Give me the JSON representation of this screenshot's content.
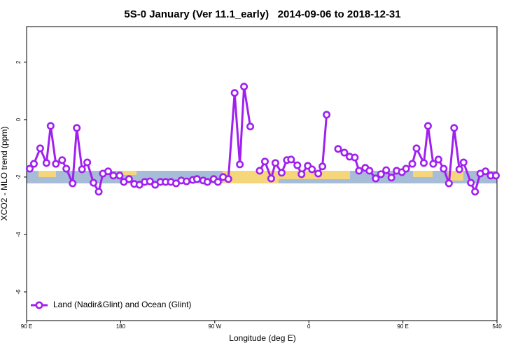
{
  "chart_data": {
    "type": "line",
    "title": "5S-0 January (Ver 11.1_early)   2014-09-06 to 2018-12-31",
    "x_label": "Longitude (deg E)",
    "y_label": "XCO2 - MLO trend (ppm)",
    "xlim": [
      90,
      540
    ],
    "xticks": [
      {
        "value": 90,
        "label": "90 E"
      },
      180,
      {
        "value": 270,
        "label": "90 W"
      },
      {
        "value": 360,
        "label": "0"
      },
      {
        "value": 450,
        "label": "90 E"
      },
      540
    ],
    "ylim": [
      -7,
      3.24
    ],
    "yticks": [
      2,
      0,
      -2,
      -4,
      -6
    ],
    "legend": "bottom-left",
    "x": [
      93,
      97,
      103,
      109,
      113,
      118,
      124,
      128,
      134,
      138,
      143,
      148,
      154,
      159,
      163,
      168,
      173,
      179,
      183,
      188,
      193,
      198,
      203,
      208,
      213,
      218,
      223,
      228,
      233,
      238,
      243,
      249,
      253,
      259,
      263,
      269,
      273,
      278,
      283,
      289,
      294,
      298,
      304,
      309,
      313,
      318,
      324,
      328,
      334,
      339,
      343,
      349,
      353,
      359,
      363,
      369,
      373,
      377,
      383,
      388,
      394,
      399,
      404,
      408,
      414,
      418,
      424,
      429,
      434,
      439,
      444,
      449,
      453,
      459,
      463,
      470,
      474,
      479,
      484,
      489,
      494,
      499,
      504,
      508,
      515,
      519,
      524,
      529,
      534,
      539
    ],
    "series": [
      {
        "name": "Land (Nadir&Glint) and Ocean (Glint)",
        "color": "#a020f0",
        "values": [
          -1.71,
          -1.54,
          -1.0,
          -1.51,
          -0.22,
          -1.54,
          -1.41,
          -1.71,
          -2.22,
          -0.29,
          -1.73,
          -1.49,
          -2.2,
          -2.51,
          -1.88,
          -1.8,
          -1.95,
          -1.95,
          -2.17,
          -2.07,
          -2.24,
          -2.27,
          -2.17,
          -2.15,
          -2.27,
          -2.17,
          -2.17,
          -2.17,
          -2.22,
          -2.12,
          -2.15,
          -2.1,
          -2.07,
          -2.12,
          -2.17,
          -2.07,
          -2.17,
          -2.0,
          -2.07,
          0.93,
          -1.56,
          1.15,
          -0.24,
          null,
          -1.78,
          -1.46,
          -2.05,
          -1.51,
          -1.85,
          -1.41,
          -1.39,
          -1.59,
          -1.9,
          -1.61,
          -1.73,
          -1.88,
          -1.63,
          0.17,
          null,
          -1.02,
          -1.15,
          -1.29,
          -1.32,
          -1.78,
          -1.68,
          -1.78,
          -2.05,
          -1.9,
          -1.76,
          -2.02,
          -1.78,
          -1.83,
          -1.71,
          -1.54,
          -1.0,
          -1.51,
          -0.22,
          -1.54,
          -1.39,
          -1.71,
          -2.22,
          -0.29,
          -1.73,
          -1.49,
          -2.2,
          -2.51,
          -1.88,
          -1.8,
          -1.95,
          -1.95
        ]
      }
    ]
  }
}
